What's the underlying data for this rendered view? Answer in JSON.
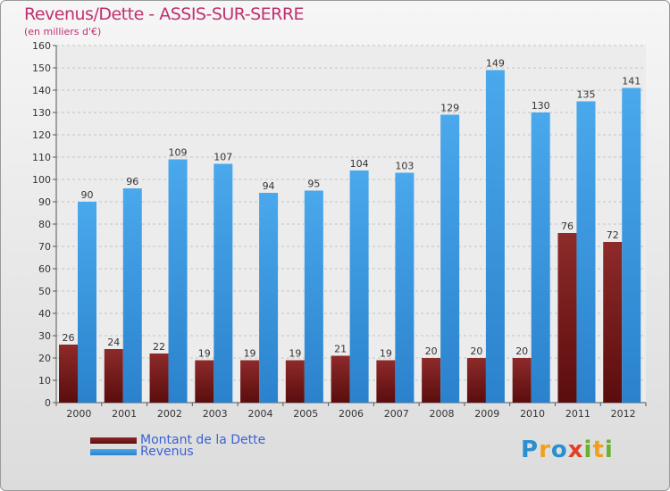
{
  "chart_data": {
    "type": "bar",
    "title": "Revenus/Dette - ASSIS-SUR-SERRE",
    "subtitle": "(en milliers d'€)",
    "xlabel": "",
    "ylabel": "",
    "ylim": [
      0,
      160
    ],
    "yticks": [
      0,
      10,
      20,
      30,
      40,
      50,
      60,
      70,
      80,
      90,
      100,
      110,
      120,
      130,
      140,
      150,
      160
    ],
    "grid": true,
    "legend_position": "bottom-left",
    "categories": [
      "2000",
      "2001",
      "2002",
      "2003",
      "2004",
      "2005",
      "2006",
      "2007",
      "2008",
      "2009",
      "2010",
      "2011",
      "2012"
    ],
    "series": [
      {
        "name": "Montant de la Dette",
        "color": "#7a1c1c",
        "values": [
          26,
          24,
          22,
          19,
          19,
          19,
          21,
          19,
          20,
          20,
          20,
          76,
          72
        ]
      },
      {
        "name": "Revenus",
        "color": "#3d9ee5",
        "values": [
          90,
          96,
          109,
          107,
          94,
          95,
          104,
          103,
          129,
          149,
          130,
          135,
          141
        ]
      }
    ]
  },
  "brand": {
    "logo_letters": [
      "P",
      "r",
      "o",
      "x",
      "i",
      "t",
      "i"
    ]
  }
}
